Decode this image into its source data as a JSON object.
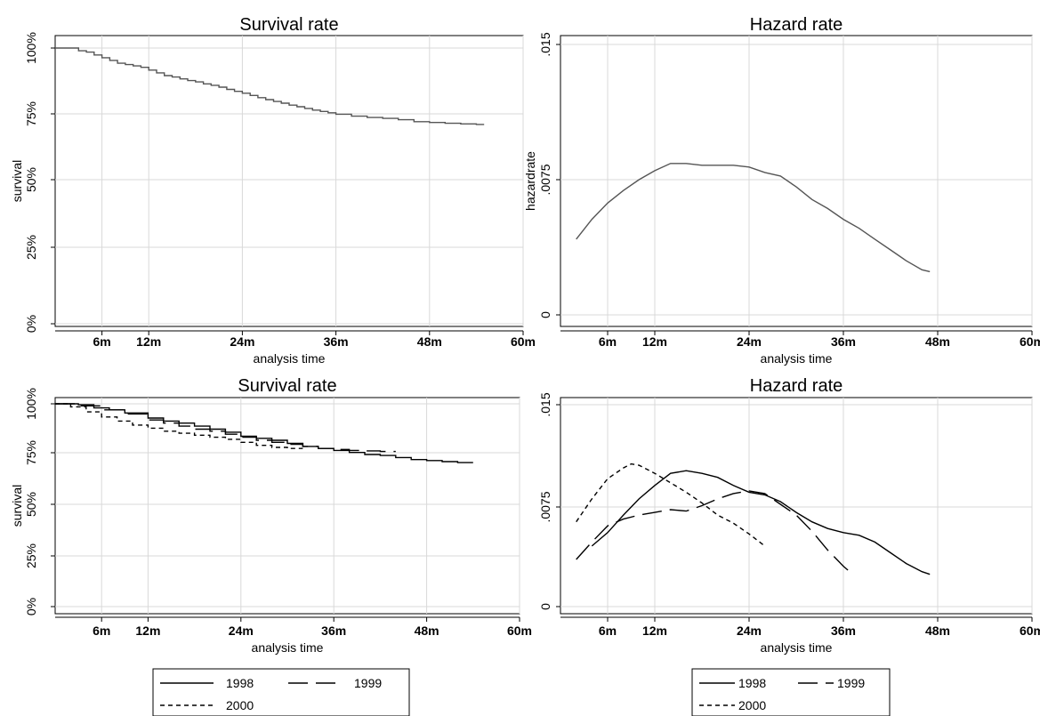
{
  "chart_data": [
    {
      "id": "survival-top",
      "type": "line",
      "step": true,
      "title": "Survival rate",
      "xlabel": "analysis time",
      "ylabel": "survival",
      "xlim": [
        0,
        60
      ],
      "ylim": [
        0,
        1
      ],
      "xticks": [
        6,
        12,
        24,
        36,
        48,
        60
      ],
      "xtick_labels": [
        "6m",
        "12m",
        "24m",
        "36m",
        "48m",
        "60m"
      ],
      "yticks": [
        0,
        0.25,
        0.5,
        0.75,
        1
      ],
      "ytick_labels": [
        "0%",
        "25%",
        "50%",
        "75%",
        "100%"
      ],
      "grid": true,
      "legend": null,
      "series": [
        {
          "style": "solid",
          "color": "#555555",
          "x": [
            0,
            2,
            3,
            4,
            5,
            6,
            7,
            8,
            9,
            10,
            11,
            12,
            13,
            14,
            15,
            16,
            17,
            18,
            19,
            20,
            21,
            22,
            23,
            24,
            25,
            26,
            27,
            28,
            29,
            30,
            31,
            32,
            33,
            34,
            35,
            36,
            38,
            40,
            42,
            44,
            46,
            48,
            50,
            52,
            54,
            55
          ],
          "y": [
            1.0,
            1.0,
            0.99,
            0.985,
            0.975,
            0.965,
            0.955,
            0.945,
            0.94,
            0.935,
            0.93,
            0.92,
            0.91,
            0.9,
            0.895,
            0.888,
            0.882,
            0.877,
            0.87,
            0.865,
            0.858,
            0.85,
            0.843,
            0.836,
            0.828,
            0.82,
            0.813,
            0.806,
            0.8,
            0.793,
            0.787,
            0.781,
            0.775,
            0.77,
            0.765,
            0.76,
            0.753,
            0.748,
            0.745,
            0.74,
            0.733,
            0.73,
            0.727,
            0.725,
            0.723,
            0.723
          ]
        }
      ]
    },
    {
      "id": "hazard-top",
      "type": "line",
      "title": "Hazard rate",
      "xlabel": "analysis time",
      "ylabel": "hazardrate",
      "xlim": [
        0,
        60
      ],
      "ylim": [
        0,
        0.015
      ],
      "xticks": [
        6,
        12,
        24,
        36,
        48,
        60
      ],
      "xtick_labels": [
        "6m",
        "12m",
        "24m",
        "36m",
        "48m",
        "60m"
      ],
      "yticks": [
        0,
        0.0075,
        0.015
      ],
      "ytick_labels": [
        "0",
        ".0075",
        ".015"
      ],
      "grid": true,
      "legend": null,
      "series": [
        {
          "style": "solid",
          "color": "#555555",
          "x": [
            2,
            4,
            6,
            8,
            10,
            12,
            14,
            16,
            18,
            20,
            22,
            24,
            26,
            28,
            30,
            32,
            34,
            36,
            38,
            40,
            42,
            44,
            46,
            47
          ],
          "y": [
            0.0042,
            0.0053,
            0.0062,
            0.0069,
            0.0075,
            0.008,
            0.0084,
            0.0084,
            0.0083,
            0.0083,
            0.0083,
            0.0082,
            0.0079,
            0.0077,
            0.0071,
            0.0064,
            0.0059,
            0.0053,
            0.0048,
            0.0042,
            0.0036,
            0.003,
            0.0025,
            0.0024
          ]
        }
      ]
    },
    {
      "id": "survival-bottom",
      "type": "line",
      "step": true,
      "title": "Survival rate",
      "xlabel": "analysis time",
      "ylabel": "survival",
      "xlim": [
        0,
        60
      ],
      "ylim": [
        0,
        1
      ],
      "xticks": [
        6,
        12,
        24,
        36,
        48,
        60
      ],
      "xtick_labels": [
        "6m",
        "12m",
        "24m",
        "36m",
        "48m",
        "60m"
      ],
      "yticks": [
        0,
        0.25,
        0.5,
        0.75,
        1
      ],
      "ytick_labels": [
        "0%",
        "25%",
        "50%",
        "75%",
        "100%"
      ],
      "grid": true,
      "legend": {
        "position": "bottom",
        "columns": 2,
        "style": "boxed"
      },
      "series": [
        {
          "name": "1998",
          "style": "solid",
          "x": [
            0,
            3,
            5,
            7,
            9,
            12,
            14,
            16,
            18,
            20,
            22,
            24,
            26,
            28,
            30,
            32,
            34,
            36,
            38,
            40,
            42,
            44,
            46,
            48,
            50,
            52,
            54
          ],
          "y": [
            1.0,
            0.995,
            0.98,
            0.97,
            0.955,
            0.93,
            0.915,
            0.905,
            0.89,
            0.875,
            0.86,
            0.84,
            0.83,
            0.82,
            0.805,
            0.79,
            0.78,
            0.77,
            0.76,
            0.75,
            0.745,
            0.735,
            0.725,
            0.72,
            0.715,
            0.71,
            0.71
          ]
        },
        {
          "name": "1999",
          "style": "longdash",
          "x": [
            0,
            3,
            6,
            9,
            12,
            14,
            16,
            18,
            20,
            22,
            24,
            26,
            28,
            30,
            32,
            34,
            36,
            38,
            40,
            42,
            44
          ],
          "y": [
            1.0,
            0.99,
            0.97,
            0.95,
            0.92,
            0.905,
            0.89,
            0.875,
            0.865,
            0.85,
            0.835,
            0.82,
            0.81,
            0.8,
            0.79,
            0.78,
            0.775,
            0.77,
            0.768,
            0.765,
            0.765
          ]
        },
        {
          "name": "2000",
          "style": "shortdash",
          "x": [
            0,
            2,
            4,
            6,
            8,
            10,
            12,
            14,
            16,
            18,
            20,
            22,
            24,
            26,
            28,
            30,
            32
          ],
          "y": [
            1.0,
            0.985,
            0.96,
            0.935,
            0.915,
            0.895,
            0.88,
            0.865,
            0.855,
            0.845,
            0.835,
            0.825,
            0.81,
            0.795,
            0.785,
            0.78,
            0.78
          ]
        }
      ]
    },
    {
      "id": "hazard-bottom",
      "type": "line",
      "title": "Hazard rate",
      "xlabel": "analysis time",
      "ylabel": "",
      "xlim": [
        0,
        60
      ],
      "ylim": [
        0,
        0.015
      ],
      "xticks": [
        6,
        12,
        24,
        36,
        48,
        60
      ],
      "xtick_labels": [
        "6m",
        "12m",
        "24m",
        "36m",
        "48m",
        "60m"
      ],
      "yticks": [
        0,
        0.0075,
        0.015
      ],
      "ytick_labels": [
        "0",
        ".0075",
        ".015"
      ],
      "grid": true,
      "legend": {
        "position": "bottom",
        "columns": 2,
        "style": "boxed"
      },
      "series": [
        {
          "name": "1998",
          "style": "solid",
          "x": [
            4,
            6,
            8,
            10,
            12,
            14,
            16,
            18,
            20,
            22,
            24,
            26,
            28,
            30,
            32,
            34,
            36,
            38,
            40,
            42,
            44,
            46,
            47
          ],
          "y": [
            0.0045,
            0.0055,
            0.0068,
            0.008,
            0.009,
            0.0099,
            0.0101,
            0.0099,
            0.0096,
            0.009,
            0.0085,
            0.0083,
            0.0078,
            0.007,
            0.0063,
            0.0058,
            0.0055,
            0.0053,
            0.0048,
            0.004,
            0.0032,
            0.0026,
            0.0024
          ]
        },
        {
          "name": "1999",
          "style": "longdash",
          "x": [
            2,
            4,
            6,
            8,
            10,
            12,
            14,
            16,
            18,
            20,
            22,
            24,
            26,
            28,
            30,
            32,
            34,
            36,
            37
          ],
          "y": [
            0.0035,
            0.0048,
            0.006,
            0.0065,
            0.0068,
            0.007,
            0.0072,
            0.0071,
            0.0075,
            0.008,
            0.0084,
            0.0086,
            0.0084,
            0.0076,
            0.0068,
            0.0056,
            0.0042,
            0.003,
            0.0025
          ]
        },
        {
          "name": "2000",
          "style": "shortdash",
          "x": [
            2,
            4,
            6,
            8,
            9,
            10,
            12,
            14,
            16,
            18,
            20,
            22,
            24,
            26
          ],
          "y": [
            0.0063,
            0.008,
            0.0095,
            0.0103,
            0.0106,
            0.0105,
            0.0099,
            0.0092,
            0.0085,
            0.0077,
            0.0068,
            0.0062,
            0.0054,
            0.0045
          ]
        }
      ]
    }
  ]
}
